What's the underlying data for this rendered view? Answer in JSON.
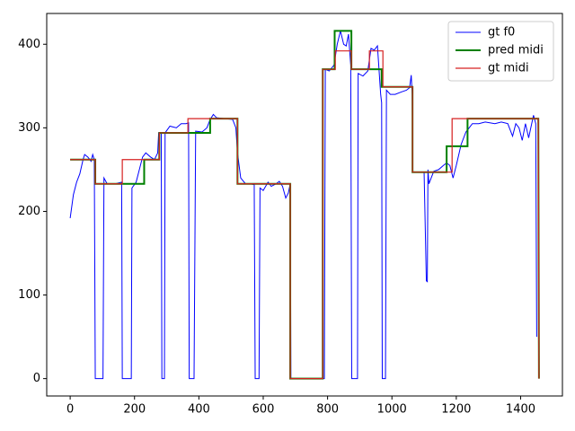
{
  "chart_data": {
    "type": "line",
    "xlim": [
      -72.9,
      1529.9
    ],
    "ylim": [
      -20.8,
      436.8
    ],
    "xticks": [
      0,
      200,
      400,
      600,
      800,
      1000,
      1200,
      1400
    ],
    "yticks": [
      0,
      100,
      200,
      300,
      400
    ],
    "legend": "upper right",
    "series": [
      {
        "name": "gt f0",
        "color": "#0000ff",
        "width": 1,
        "x": [
          0,
          10,
          20,
          30,
          40,
          45,
          55,
          65,
          70,
          75,
          78,
          102,
          105,
          115,
          140,
          160,
          162,
          190,
          192,
          205,
          215,
          225,
          235,
          250,
          262,
          272,
          275,
          283,
          285,
          293,
          295,
          310,
          330,
          345,
          360,
          368,
          370,
          385,
          390,
          410,
          425,
          435,
          445,
          455,
          480,
          505,
          515,
          520,
          530,
          545,
          560,
          572,
          575,
          587,
          590,
          600,
          615,
          625,
          640,
          650,
          660,
          670,
          678,
          684,
          686,
          790,
          793,
          805,
          820,
          830,
          840,
          850,
          858,
          865,
          872,
          875,
          893,
          895,
          910,
          925,
          935,
          945,
          955,
          965,
          968,
          970,
          980,
          983,
          995,
          1010,
          1030,
          1045,
          1055,
          1060,
          1063,
          1065,
          1100,
          1107,
          1110,
          1112,
          1115,
          1130,
          1145,
          1160,
          1170,
          1180,
          1190,
          1200,
          1215,
          1230,
          1250,
          1270,
          1290,
          1320,
          1340,
          1360,
          1375,
          1385,
          1395,
          1405,
          1415,
          1425,
          1440,
          1447,
          1450
        ],
        "values": [
          192,
          220,
          235,
          245,
          262,
          268,
          265,
          260,
          268,
          262,
          0,
          0,
          240,
          233,
          233,
          235,
          0,
          0,
          228,
          235,
          250,
          265,
          270,
          265,
          262,
          270,
          294,
          294,
          0,
          0,
          294,
          302,
          300,
          305,
          305,
          306,
          0,
          0,
          296,
          295,
          300,
          310,
          316,
          312,
          311,
          310,
          300,
          270,
          240,
          233,
          233,
          232,
          0,
          0,
          228,
          225,
          235,
          230,
          233,
          236,
          230,
          216,
          222,
          233,
          0,
          0,
          370,
          368,
          375,
          400,
          416,
          400,
          398,
          412,
          375,
          0,
          0,
          365,
          362,
          368,
          395,
          393,
          398,
          340,
          330,
          0,
          0,
          345,
          340,
          340,
          343,
          345,
          348,
          363,
          340,
          247,
          247,
          117,
          116,
          250,
          233,
          248,
          250,
          255,
          258,
          255,
          240,
          255,
          280,
          295,
          305,
          305,
          307,
          305,
          307,
          305,
          290,
          305,
          300,
          285,
          305,
          288,
          315,
          305,
          50
        ]
      },
      {
        "name": "pred midi",
        "color": "#008000",
        "width": 2,
        "x": [
          0,
          78,
          78,
          230,
          230,
          277,
          277,
          435,
          435,
          520,
          520,
          684,
          684,
          785,
          785,
          822,
          822,
          874,
          874,
          968,
          968,
          1064,
          1064,
          1170,
          1170,
          1235,
          1235,
          1455,
          1457
        ],
        "values": [
          262,
          262,
          233,
          233,
          262,
          262,
          294,
          294,
          311,
          311,
          233,
          233,
          0,
          0,
          370,
          370,
          416,
          416,
          370,
          370,
          349,
          349,
          247,
          247,
          278,
          278,
          311,
          311,
          0
        ]
      },
      {
        "name": "gt midi",
        "color": "#d62020",
        "width": 1.2,
        "x": [
          0,
          78,
          78,
          162,
          162,
          277,
          277,
          366,
          366,
          520,
          520,
          684,
          684,
          785,
          785,
          824,
          824,
          874,
          874,
          930,
          930,
          972,
          972,
          1064,
          1064,
          1187,
          1187,
          1455,
          1457
        ],
        "values": [
          262,
          262,
          233,
          233,
          262,
          262,
          294,
          294,
          311,
          311,
          233,
          233,
          0,
          0,
          370,
          370,
          392,
          392,
          370,
          370,
          392,
          392,
          349,
          349,
          247,
          247,
          311,
          311,
          0
        ]
      }
    ]
  }
}
